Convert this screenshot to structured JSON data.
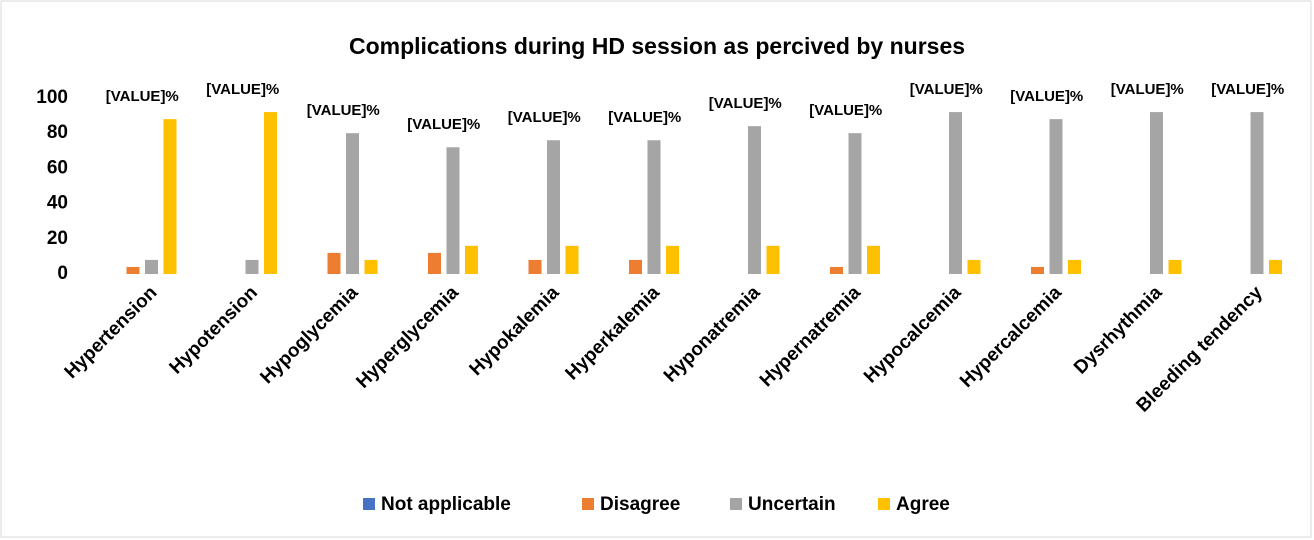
{
  "chart_data": {
    "type": "bar",
    "title": "Complications during HD session as percived by nurses",
    "categories": [
      "Hypertension",
      "Hypotension",
      "Hypoglycemia",
      "Hyperglycemia",
      "Hypokalemia",
      "Hyperkalemia",
      "Hyponatremia",
      "Hypernatremia",
      "Hypocalcemia",
      "Hypercalcemia",
      "Dysrhythmia",
      "Bleeding tendency"
    ],
    "series": [
      {
        "name": "Not applicable",
        "color": "#4472c4",
        "values": [
          0,
          0,
          0,
          0,
          0,
          0,
          0,
          0,
          0,
          0,
          0,
          0
        ]
      },
      {
        "name": "Disagree",
        "color": "#ed7d31",
        "values": [
          4,
          0,
          12,
          12,
          8,
          8,
          0,
          4,
          0,
          4,
          0,
          0
        ]
      },
      {
        "name": "Uncertain",
        "color": "#a5a5a5",
        "values": [
          8,
          8,
          80,
          72,
          76,
          76,
          84,
          80,
          92,
          88,
          92,
          92
        ]
      },
      {
        "name": "Agree",
        "color": "#ffc000",
        "values": [
          88,
          92,
          8,
          16,
          16,
          16,
          16,
          16,
          8,
          8,
          8,
          8
        ]
      }
    ],
    "annotations": [
      "[VALUE]%",
      "[VALUE]%",
      "[VALUE]%",
      "[VALUE]%",
      "[VALUE]%",
      "[VALUE]%",
      "[VALUE]%",
      "[VALUE]%",
      "[VALUE]%",
      "[VALUE]%",
      "[VALUE]%",
      "[VALUE]%"
    ],
    "ylim": [
      0,
      100
    ],
    "yticks": [
      0,
      20,
      40,
      60,
      80,
      100
    ],
    "grid": false,
    "legend": "bottom"
  }
}
